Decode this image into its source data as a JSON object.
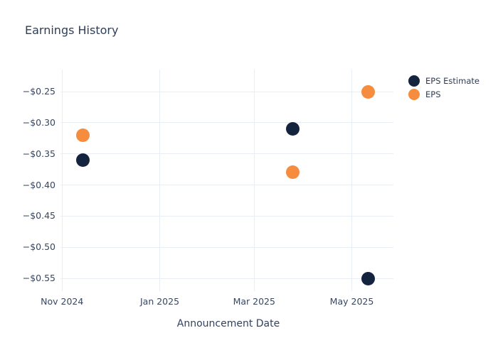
{
  "chart_data": {
    "type": "scatter",
    "title": "Earnings History",
    "xlabel": "Announcement Date",
    "ylabel": "",
    "grid": true,
    "background_color": "#ffffff",
    "grid_color": "#e9eef4",
    "text_color": "#38465f",
    "marker_size": 19,
    "legend_position": "right-top-outside",
    "x_axis": {
      "lim": [
        "2024-10-31",
        "2025-05-27"
      ],
      "ticks": [
        {
          "date": "2024-11-01",
          "label": "Nov 2024"
        },
        {
          "date": "2025-01-01",
          "label": "Jan 2025"
        },
        {
          "date": "2025-03-01",
          "label": "Mar 2025"
        },
        {
          "date": "2025-05-01",
          "label": "May 2025"
        }
      ]
    },
    "y_axis": {
      "lim": [
        -0.5705,
        -0.2146
      ],
      "ticks": [
        {
          "value": -0.25,
          "label": "−$0.25"
        },
        {
          "value": -0.3,
          "label": "−$0.30"
        },
        {
          "value": -0.35,
          "label": "−$0.35"
        },
        {
          "value": -0.4,
          "label": "−$0.40"
        },
        {
          "value": -0.45,
          "label": "−$0.45"
        },
        {
          "value": -0.5,
          "label": "−$0.50"
        },
        {
          "value": -0.55,
          "label": "−$0.55"
        }
      ]
    },
    "series": [
      {
        "name": "EPS Estimate",
        "color": "#15243e",
        "points": [
          {
            "date": "2024-11-14",
            "value": -0.36
          },
          {
            "date": "2025-03-25",
            "value": -0.31
          },
          {
            "date": "2025-05-11",
            "value": -0.55
          }
        ]
      },
      {
        "name": "EPS",
        "color": "#f68c3e",
        "points": [
          {
            "date": "2024-11-14",
            "value": -0.32
          },
          {
            "date": "2025-03-25",
            "value": -0.38
          },
          {
            "date": "2025-05-11",
            "value": -0.25
          }
        ]
      }
    ]
  }
}
